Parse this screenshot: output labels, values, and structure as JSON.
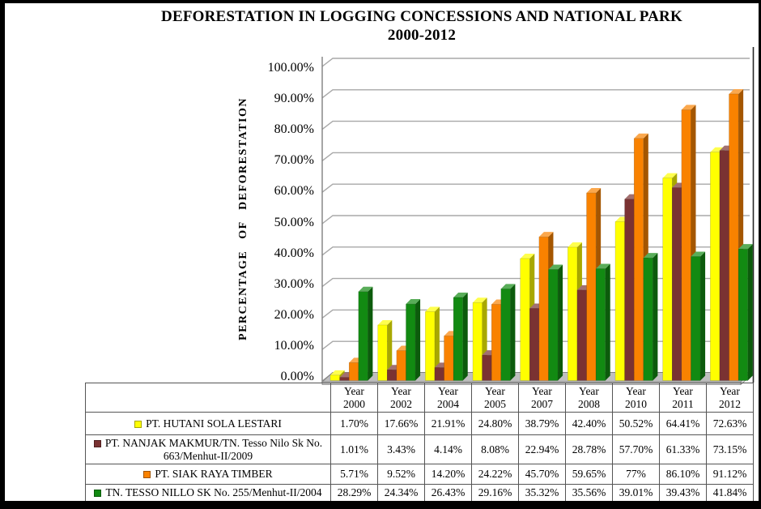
{
  "title": {
    "line1": "DEFORESTATION IN LOGGING CONCESSIONS AND NATIONAL PARK",
    "line2": "2000-2012"
  },
  "chart_data": {
    "type": "bar",
    "title": "DEFORESTATION IN LOGGING CONCESSIONS AND NATIONAL PARK 2000-2012",
    "ylabel": "PERCENTAGE OF DEFORESTATION",
    "ylim": [
      0,
      100
    ],
    "ytick_step": 10,
    "yticks": [
      "0.00%",
      "10.00%",
      "20.00%",
      "30.00%",
      "40.00%",
      "50.00%",
      "60.00%",
      "70.00%",
      "80.00%",
      "90.00%",
      "100.00%"
    ],
    "grid": true,
    "style": "3d-clustered-column",
    "legend_position": "bottom-data-table",
    "categories": [
      "Year 2000",
      "Year 2002",
      "Year 2004",
      "Year 2005",
      "Year 2007",
      "Year 2008",
      "Year 2010",
      "Year 2011",
      "Year 2012"
    ],
    "series": [
      {
        "name": "PT. HUTANI SOLA LESTARI",
        "color": "#FFFF00",
        "values": [
          1.7,
          17.66,
          21.91,
          24.8,
          38.79,
          42.4,
          50.52,
          64.41,
          72.63
        ]
      },
      {
        "name": "PT. NANJAK MAKMUR/TN. Tesso Nilo Sk No. 663/Menhut-II/2009",
        "color": "#7A3232",
        "values": [
          1.01,
          3.43,
          4.14,
          8.08,
          22.94,
          28.78,
          57.7,
          61.33,
          73.15
        ]
      },
      {
        "name": "PT. SIAK RAYA TIMBER",
        "color": "#F98200",
        "values": [
          5.71,
          9.52,
          14.2,
          24.22,
          45.7,
          59.65,
          77,
          86.1,
          91.12
        ]
      },
      {
        "name": "TN. TESSO NILLO SK No. 255/Menhut-II/2004",
        "color": "#128A12",
        "values": [
          28.29,
          24.34,
          26.43,
          29.16,
          35.32,
          35.56,
          39.01,
          39.43,
          41.84
        ]
      }
    ]
  },
  "table": {
    "rows": [
      {
        "label": "PT. HUTANI SOLA LESTARI",
        "values": [
          "1.70%",
          "17.66%",
          "21.91%",
          "24.80%",
          "38.79%",
          "42.40%",
          "50.52%",
          "64.41%",
          "72.63%"
        ]
      },
      {
        "label": "PT. NANJAK MAKMUR/TN. Tesso Nilo Sk No. 663/Menhut-II/2009",
        "values": [
          "1.01%",
          "3.43%",
          "4.14%",
          "8.08%",
          "22.94%",
          "28.78%",
          "57.70%",
          "61.33%",
          "73.15%"
        ]
      },
      {
        "label": "PT. SIAK RAYA TIMBER",
        "values": [
          "5.71%",
          "9.52%",
          "14.20%",
          "24.22%",
          "45.70%",
          "59.65%",
          "77%",
          "86.10%",
          "91.12%"
        ]
      },
      {
        "label": "TN. TESSO NILLO SK No. 255/Menhut-II/2004",
        "values": [
          "28.29%",
          "24.34%",
          "26.43%",
          "29.16%",
          "35.32%",
          "35.56%",
          "39.01%",
          "39.43%",
          "41.84%"
        ]
      }
    ]
  }
}
